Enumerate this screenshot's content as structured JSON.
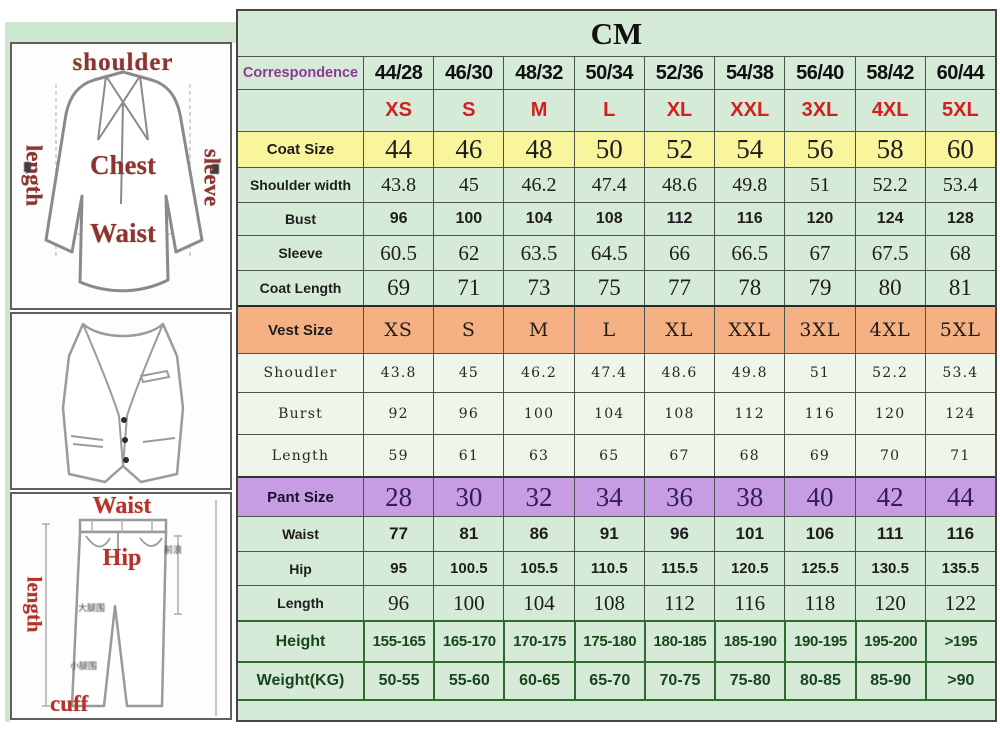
{
  "title": "CM",
  "colors": {
    "panel_green": "#cfe7d1",
    "cell_green": "#d6ebd7",
    "vest_row_green": "#eef5e9",
    "coat_size_yellow": "#f9f59d",
    "vest_size_orange": "#f5b183",
    "pant_size_purple": "#c79ce2",
    "size_red_text": "#d21f1f",
    "correspondence_purple": "#8d3a96",
    "height_weight_green": "#17461b",
    "diagram_label_red": "#8c342e",
    "border_dark": "#454545",
    "border_green": "#2e6b30"
  },
  "diagrams": {
    "jacket": {
      "shoulder": "shoulder",
      "length": "length",
      "sleeve": "sleeve",
      "chest": "Chest",
      "waist": "Waist"
    },
    "pants": {
      "waist": "Waist",
      "length": "length",
      "hip": "Hip",
      "cuff": "cuff",
      "front_rise": "前浪",
      "thigh": "大腿围",
      "calf": "小腿围"
    }
  },
  "table": {
    "correspondence_label": "Correspondence",
    "columns": [
      "44/28",
      "46/30",
      "48/32",
      "50/34",
      "52/36",
      "54/38",
      "56/40",
      "58/42",
      "60/44"
    ],
    "sizes": [
      "XS",
      "S",
      "M",
      "L",
      "XL",
      "XXL",
      "3XL",
      "4XL",
      "5XL"
    ],
    "rows": [
      {
        "id": "coat-size",
        "label": "Coat Size",
        "values": [
          "44",
          "46",
          "48",
          "50",
          "52",
          "54",
          "56",
          "58",
          "60"
        ]
      },
      {
        "id": "shoulder-width",
        "label": "Shoulder width",
        "values": [
          "43.8",
          "45",
          "46.2",
          "47.4",
          "48.6",
          "49.8",
          "51",
          "52.2",
          "53.4"
        ]
      },
      {
        "id": "bust",
        "label": "Bust",
        "values": [
          "96",
          "100",
          "104",
          "108",
          "112",
          "116",
          "120",
          "124",
          "128"
        ]
      },
      {
        "id": "sleeve",
        "label": "Sleeve",
        "values": [
          "60.5",
          "62",
          "63.5",
          "64.5",
          "66",
          "66.5",
          "67",
          "67.5",
          "68"
        ]
      },
      {
        "id": "coat-length",
        "label": "Coat Length",
        "values": [
          "69",
          "71",
          "73",
          "75",
          "77",
          "78",
          "79",
          "80",
          "81"
        ]
      },
      {
        "id": "vest-size",
        "label": "Vest Size",
        "values": [
          "XS",
          "S",
          "M",
          "L",
          "XL",
          "XXL",
          "3XL",
          "4XL",
          "5XL"
        ]
      },
      {
        "id": "vest-shoulder",
        "label": "Shoudler",
        "values": [
          "43.8",
          "45",
          "46.2",
          "47.4",
          "48.6",
          "49.8",
          "51",
          "52.2",
          "53.4"
        ]
      },
      {
        "id": "vest-bust",
        "label": "Burst",
        "values": [
          "92",
          "96",
          "100",
          "104",
          "108",
          "112",
          "116",
          "120",
          "124"
        ]
      },
      {
        "id": "vest-length",
        "label": "Length",
        "values": [
          "59",
          "61",
          "63",
          "65",
          "67",
          "68",
          "69",
          "70",
          "71"
        ]
      },
      {
        "id": "pant-size",
        "label": "Pant Size",
        "values": [
          "28",
          "30",
          "32",
          "34",
          "36",
          "38",
          "40",
          "42",
          "44"
        ]
      },
      {
        "id": "pant-waist",
        "label": "Waist",
        "values": [
          "77",
          "81",
          "86",
          "91",
          "96",
          "101",
          "106",
          "111",
          "116"
        ]
      },
      {
        "id": "pant-hip",
        "label": "Hip",
        "values": [
          "95",
          "100.5",
          "105.5",
          "110.5",
          "115.5",
          "120.5",
          "125.5",
          "130.5",
          "135.5"
        ]
      },
      {
        "id": "pant-length",
        "label": "Length",
        "values": [
          "96",
          "100",
          "104",
          "108",
          "112",
          "116",
          "118",
          "120",
          "122"
        ]
      },
      {
        "id": "height",
        "label": "Height",
        "values": [
          "155-165",
          "165-170",
          "170-175",
          "175-180",
          "180-185",
          "185-190",
          "190-195",
          "195-200",
          ">195"
        ]
      },
      {
        "id": "weight",
        "label": "Weight(KG)",
        "values": [
          "50-55",
          "55-60",
          "60-65",
          "65-70",
          "70-75",
          "75-80",
          "80-85",
          "85-90",
          ">90"
        ]
      }
    ]
  },
  "chart_data": {
    "type": "table",
    "title": "CM",
    "columns": [
      "Correspondence",
      "44/28",
      "46/30",
      "48/32",
      "50/34",
      "52/36",
      "54/38",
      "56/40",
      "58/42",
      "60/44"
    ],
    "rows": [
      [
        "",
        "XS",
        "S",
        "M",
        "L",
        "XL",
        "XXL",
        "3XL",
        "4XL",
        "5XL"
      ],
      [
        "Coat Size",
        "44",
        "46",
        "48",
        "50",
        "52",
        "54",
        "56",
        "58",
        "60"
      ],
      [
        "Shoulder width",
        "43.8",
        "45",
        "46.2",
        "47.4",
        "48.6",
        "49.8",
        "51",
        "52.2",
        "53.4"
      ],
      [
        "Bust",
        "96",
        "100",
        "104",
        "108",
        "112",
        "116",
        "120",
        "124",
        "128"
      ],
      [
        "Sleeve",
        "60.5",
        "62",
        "63.5",
        "64.5",
        "66",
        "66.5",
        "67",
        "67.5",
        "68"
      ],
      [
        "Coat Length",
        "69",
        "71",
        "73",
        "75",
        "77",
        "78",
        "79",
        "80",
        "81"
      ],
      [
        "Vest Size",
        "XS",
        "S",
        "M",
        "L",
        "XL",
        "XXL",
        "3XL",
        "4XL",
        "5XL"
      ],
      [
        "Shoudler",
        "43.8",
        "45",
        "46.2",
        "47.4",
        "48.6",
        "49.8",
        "51",
        "52.2",
        "53.4"
      ],
      [
        "Burst",
        "92",
        "96",
        "100",
        "104",
        "108",
        "112",
        "116",
        "120",
        "124"
      ],
      [
        "Length",
        "59",
        "61",
        "63",
        "65",
        "67",
        "68",
        "69",
        "70",
        "71"
      ],
      [
        "Pant Size",
        "28",
        "30",
        "32",
        "34",
        "36",
        "38",
        "40",
        "42",
        "44"
      ],
      [
        "Waist",
        "77",
        "81",
        "86",
        "91",
        "96",
        "101",
        "106",
        "111",
        "116"
      ],
      [
        "Hip",
        "95",
        "100.5",
        "105.5",
        "110.5",
        "115.5",
        "120.5",
        "125.5",
        "130.5",
        "135.5"
      ],
      [
        "Length",
        "96",
        "100",
        "104",
        "108",
        "112",
        "116",
        "118",
        "120",
        "122"
      ],
      [
        "Height",
        "155-165",
        "165-170",
        "170-175",
        "175-180",
        "180-185",
        "185-190",
        "190-195",
        "195-200",
        ">195"
      ],
      [
        "Weight(KG)",
        "50-55",
        "55-60",
        "60-65",
        "65-70",
        "70-75",
        "75-80",
        "80-85",
        "85-90",
        ">90"
      ]
    ]
  }
}
